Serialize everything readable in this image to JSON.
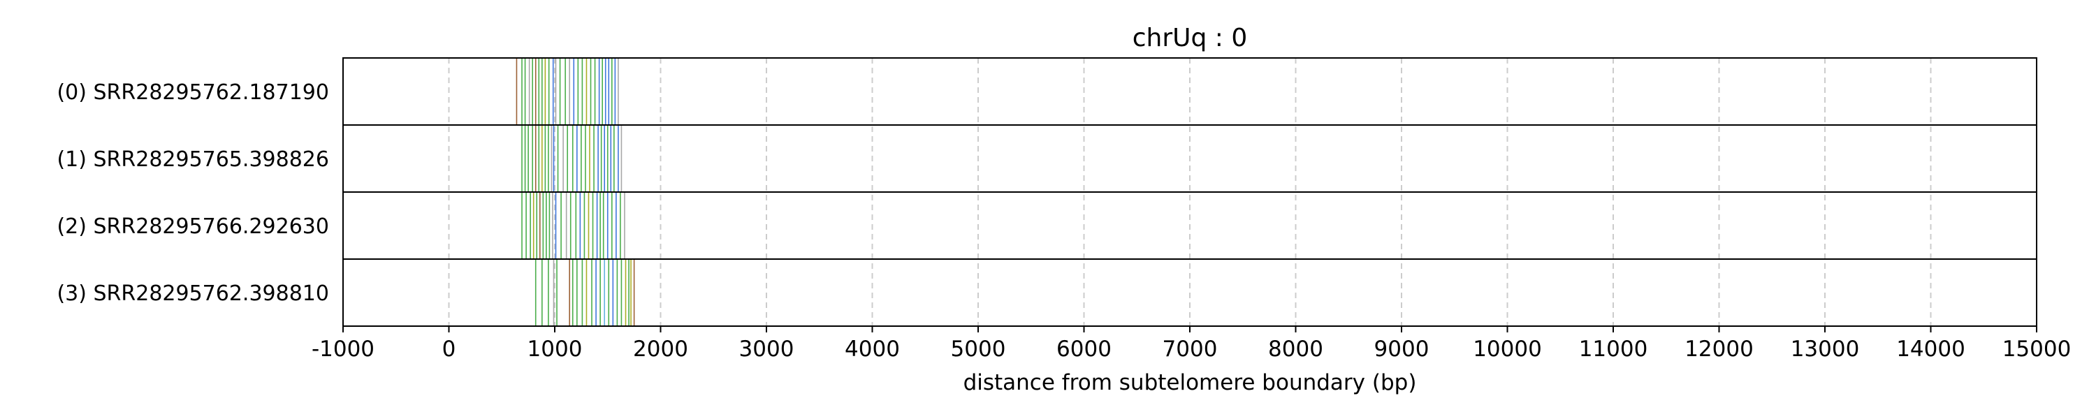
{
  "chart_data": {
    "type": "line",
    "title": "chrUq : 0",
    "xlabel": "distance from subtelomere boundary (bp)",
    "ylabel": "",
    "xlim": [
      -1000,
      15000
    ],
    "xticks": [
      -1000,
      0,
      1000,
      2000,
      3000,
      4000,
      5000,
      6000,
      7000,
      8000,
      9000,
      10000,
      11000,
      12000,
      13000,
      14000,
      15000
    ],
    "grid": "vertical dashed",
    "colors": {
      "green": "#2ca02c",
      "blue": "#1f5fd6",
      "brown": "#8b4513",
      "gray": "#999999",
      "olive": "#9aa000",
      "sky": "#4aa8d8"
    },
    "series": [
      {
        "name": "(0) SRR28295762.187190",
        "marks": [
          {
            "x": 640,
            "c": "brown"
          },
          {
            "x": 690,
            "c": "green"
          },
          {
            "x": 720,
            "c": "green"
          },
          {
            "x": 760,
            "c": "gray"
          },
          {
            "x": 790,
            "c": "green"
          },
          {
            "x": 820,
            "c": "brown"
          },
          {
            "x": 850,
            "c": "green"
          },
          {
            "x": 880,
            "c": "green"
          },
          {
            "x": 910,
            "c": "olive"
          },
          {
            "x": 945,
            "c": "green"
          },
          {
            "x": 985,
            "c": "blue"
          },
          {
            "x": 1010,
            "c": "gray"
          },
          {
            "x": 1050,
            "c": "green"
          },
          {
            "x": 1100,
            "c": "green"
          },
          {
            "x": 1140,
            "c": "gray"
          },
          {
            "x": 1180,
            "c": "blue"
          },
          {
            "x": 1220,
            "c": "green"
          },
          {
            "x": 1260,
            "c": "green"
          },
          {
            "x": 1300,
            "c": "olive"
          },
          {
            "x": 1340,
            "c": "green"
          },
          {
            "x": 1380,
            "c": "green"
          },
          {
            "x": 1420,
            "c": "blue"
          },
          {
            "x": 1450,
            "c": "green"
          },
          {
            "x": 1480,
            "c": "blue"
          },
          {
            "x": 1510,
            "c": "blue"
          },
          {
            "x": 1540,
            "c": "green"
          },
          {
            "x": 1570,
            "c": "blue"
          },
          {
            "x": 1600,
            "c": "gray"
          }
        ]
      },
      {
        "name": "(1) SRR28295765.398826",
        "marks": [
          {
            "x": 690,
            "c": "green"
          },
          {
            "x": 720,
            "c": "green"
          },
          {
            "x": 750,
            "c": "green"
          },
          {
            "x": 790,
            "c": "green"
          },
          {
            "x": 820,
            "c": "brown"
          },
          {
            "x": 850,
            "c": "green"
          },
          {
            "x": 880,
            "c": "olive"
          },
          {
            "x": 910,
            "c": "green"
          },
          {
            "x": 940,
            "c": "green"
          },
          {
            "x": 970,
            "c": "gray"
          },
          {
            "x": 990,
            "c": "blue"
          },
          {
            "x": 1030,
            "c": "green"
          },
          {
            "x": 1080,
            "c": "gray"
          },
          {
            "x": 1120,
            "c": "green"
          },
          {
            "x": 1170,
            "c": "green"
          },
          {
            "x": 1210,
            "c": "blue"
          },
          {
            "x": 1250,
            "c": "green"
          },
          {
            "x": 1290,
            "c": "green"
          },
          {
            "x": 1330,
            "c": "olive"
          },
          {
            "x": 1370,
            "c": "green"
          },
          {
            "x": 1410,
            "c": "blue"
          },
          {
            "x": 1440,
            "c": "green"
          },
          {
            "x": 1470,
            "c": "blue"
          },
          {
            "x": 1500,
            "c": "green"
          },
          {
            "x": 1530,
            "c": "blue"
          },
          {
            "x": 1560,
            "c": "green"
          },
          {
            "x": 1600,
            "c": "blue"
          },
          {
            "x": 1630,
            "c": "gray"
          }
        ]
      },
      {
        "name": "(2) SRR28295766.292630",
        "marks": [
          {
            "x": 690,
            "c": "green"
          },
          {
            "x": 730,
            "c": "green"
          },
          {
            "x": 770,
            "c": "green"
          },
          {
            "x": 800,
            "c": "olive"
          },
          {
            "x": 830,
            "c": "green"
          },
          {
            "x": 860,
            "c": "brown"
          },
          {
            "x": 890,
            "c": "green"
          },
          {
            "x": 920,
            "c": "green"
          },
          {
            "x": 950,
            "c": "green"
          },
          {
            "x": 980,
            "c": "gray"
          },
          {
            "x": 1010,
            "c": "blue"
          },
          {
            "x": 1060,
            "c": "green"
          },
          {
            "x": 1110,
            "c": "gray"
          },
          {
            "x": 1150,
            "c": "green"
          },
          {
            "x": 1200,
            "c": "green"
          },
          {
            "x": 1240,
            "c": "blue"
          },
          {
            "x": 1280,
            "c": "green"
          },
          {
            "x": 1320,
            "c": "olive"
          },
          {
            "x": 1360,
            "c": "green"
          },
          {
            "x": 1400,
            "c": "blue"
          },
          {
            "x": 1430,
            "c": "green"
          },
          {
            "x": 1460,
            "c": "green"
          },
          {
            "x": 1500,
            "c": "blue"
          },
          {
            "x": 1540,
            "c": "green"
          },
          {
            "x": 1580,
            "c": "blue"
          },
          {
            "x": 1620,
            "c": "green"
          },
          {
            "x": 1660,
            "c": "gray"
          }
        ]
      },
      {
        "name": "(3) SRR28295762.398810",
        "marks": [
          {
            "x": 820,
            "c": "green"
          },
          {
            "x": 880,
            "c": "green"
          },
          {
            "x": 940,
            "c": "green"
          },
          {
            "x": 990,
            "c": "gray"
          },
          {
            "x": 1020,
            "c": "green"
          },
          {
            "x": 1140,
            "c": "brown"
          },
          {
            "x": 1170,
            "c": "green"
          },
          {
            "x": 1210,
            "c": "green"
          },
          {
            "x": 1260,
            "c": "green"
          },
          {
            "x": 1300,
            "c": "olive"
          },
          {
            "x": 1350,
            "c": "green"
          },
          {
            "x": 1390,
            "c": "blue"
          },
          {
            "x": 1430,
            "c": "green"
          },
          {
            "x": 1470,
            "c": "sky"
          },
          {
            "x": 1510,
            "c": "green"
          },
          {
            "x": 1550,
            "c": "blue"
          },
          {
            "x": 1590,
            "c": "green"
          },
          {
            "x": 1630,
            "c": "green"
          },
          {
            "x": 1670,
            "c": "olive"
          },
          {
            "x": 1700,
            "c": "green"
          },
          {
            "x": 1720,
            "c": "olive"
          },
          {
            "x": 1750,
            "c": "brown"
          }
        ]
      }
    ]
  }
}
